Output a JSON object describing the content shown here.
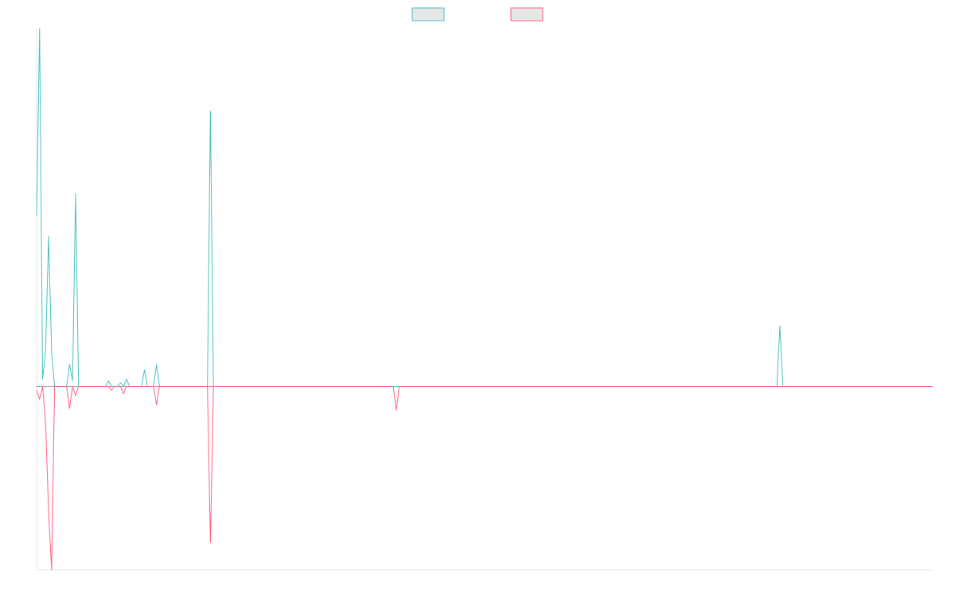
{
  "chart_data": {
    "type": "line",
    "title": "",
    "xlabel": "",
    "ylabel": "",
    "x_count": 300,
    "ylim": [
      -100,
      195
    ],
    "grid": false,
    "legend_position": "top-center",
    "series": [
      {
        "color": "#4bc0c0",
        "fill": "#e6e6e6",
        "points": [
          [
            0,
            93
          ],
          [
            1,
            195
          ],
          [
            2,
            4
          ],
          [
            3,
            20
          ],
          [
            4,
            82
          ],
          [
            5,
            19
          ],
          [
            11,
            12
          ],
          [
            12,
            3
          ],
          [
            13,
            105
          ],
          [
            24,
            3
          ],
          [
            28,
            2
          ],
          [
            30,
            4
          ],
          [
            36,
            9
          ],
          [
            40,
            12
          ],
          [
            58,
            150
          ],
          [
            248,
            33
          ]
        ]
      },
      {
        "color": "#ff6384",
        "fill": "#e6e6e6",
        "points": [
          [
            0,
            -2
          ],
          [
            1,
            -7
          ],
          [
            3,
            -20
          ],
          [
            4,
            -68
          ],
          [
            5,
            -100
          ],
          [
            11,
            -12
          ],
          [
            13,
            -5
          ],
          [
            25,
            -2
          ],
          [
            29,
            -4
          ],
          [
            40,
            -10
          ],
          [
            58,
            -85
          ],
          [
            120,
            -13
          ]
        ]
      }
    ]
  }
}
